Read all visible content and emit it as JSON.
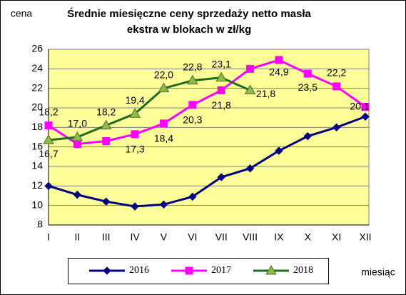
{
  "chart_data": {
    "type": "line",
    "title": "Średnie miesięczne ceny sprzedaży netto masła",
    "subtitle": "ekstra w blokach w zł/kg",
    "y_label": "cena",
    "x_label": "miesiąc",
    "categories": [
      "I",
      "II",
      "III",
      "IV",
      "V",
      "VI",
      "VII",
      "VIII",
      "IX",
      "X",
      "XI",
      "XII"
    ],
    "series": [
      {
        "name": "2016",
        "color": "#000080",
        "marker": "diamond",
        "values": [
          12.0,
          11.1,
          10.4,
          9.9,
          10.1,
          10.9,
          12.9,
          13.8,
          15.6,
          17.1,
          18.0,
          19.1
        ]
      },
      {
        "name": "2017",
        "color": "#ff00ff",
        "marker": "square",
        "values": [
          18.2,
          16.3,
          16.6,
          17.3,
          18.4,
          20.3,
          21.8,
          24.0,
          24.9,
          23.5,
          22.2,
          20.1
        ],
        "value_labels": [
          "18,2",
          null,
          null,
          "17,3",
          "18,4",
          "20,3",
          "21,8",
          null,
          "24,9",
          "23,5",
          "22,2",
          "20,1"
        ]
      },
      {
        "name": "2018",
        "color": "#1f6b1f",
        "marker": "triangle",
        "values": [
          16.7,
          17.0,
          18.2,
          19.4,
          22.0,
          22.8,
          23.1,
          21.8,
          null,
          null,
          null,
          null
        ],
        "value_labels": [
          "16,7",
          "17,0",
          "18,2",
          "19,4",
          "22,0",
          "22,8",
          "23,1",
          "21,8",
          null,
          null,
          null,
          null
        ]
      }
    ],
    "ylim": [
      8,
      26
    ],
    "yticks": [
      8,
      10,
      12,
      14,
      16,
      18,
      20,
      22,
      24,
      26
    ],
    "grid": true,
    "legend": "bottom"
  }
}
